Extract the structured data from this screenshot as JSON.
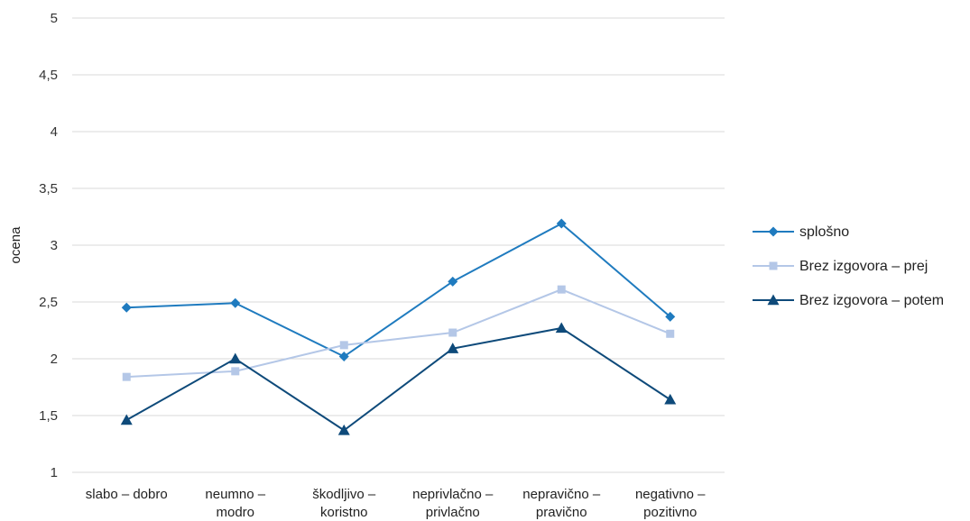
{
  "chart_data": {
    "type": "line",
    "title": "",
    "xlabel": "",
    "ylabel": "ocena",
    "ylim": [
      1,
      5
    ],
    "yticks": [
      1,
      1.5,
      2,
      2.5,
      3,
      3.5,
      4,
      4.5,
      5
    ],
    "ytick_labels": [
      "1",
      "1,5",
      "2",
      "2,5",
      "3",
      "3,5",
      "4",
      "4,5",
      "5"
    ],
    "grid": true,
    "legend": "right",
    "categories": [
      [
        "slabo – dobro"
      ],
      [
        "neumno –",
        "modro"
      ],
      [
        "škodljivo –",
        "koristno"
      ],
      [
        "neprivlačno –",
        "privlačno"
      ],
      [
        "nepravično –",
        "pravično"
      ],
      [
        "negativno –",
        "pozitivno"
      ]
    ],
    "series": [
      {
        "name": "splošno",
        "values": [
          2.45,
          2.49,
          2.02,
          2.68,
          3.19,
          2.37
        ],
        "color": "#1f7bbf",
        "marker": "diamond"
      },
      {
        "name": "Brez izgovora – prej",
        "values": [
          1.84,
          1.89,
          2.12,
          2.23,
          2.61,
          2.22
        ],
        "color": "#b4c7e7",
        "marker": "square"
      },
      {
        "name": "Brez izgovora – potem",
        "values": [
          1.46,
          2.0,
          1.37,
          2.09,
          2.27,
          1.64
        ],
        "color": "#0e4a7a",
        "marker": "triangle"
      }
    ]
  }
}
